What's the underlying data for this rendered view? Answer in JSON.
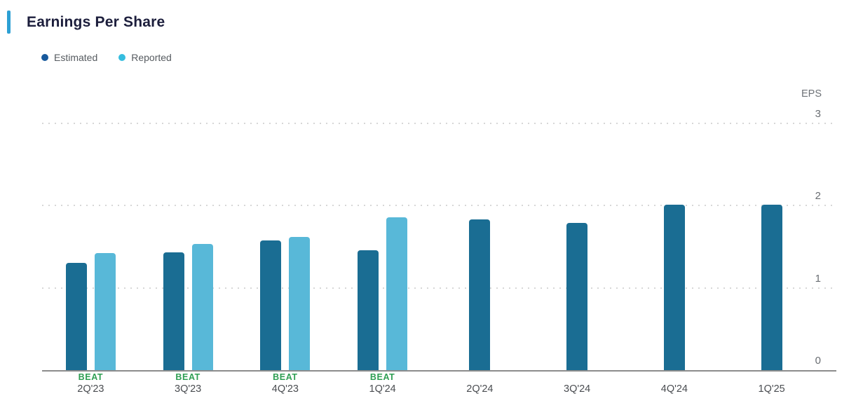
{
  "header": {
    "title": "Earnings Per Share"
  },
  "legend": {
    "estimated_label": "Estimated",
    "reported_label": "Reported"
  },
  "colors": {
    "accent_bar": "#2da0d4",
    "title_text": "#1c1e3c",
    "estimated_bar": "#1a6d93",
    "reported_bar": "#58b8d8",
    "legend_estimated_dot": "#17599c",
    "legend_reported_dot": "#35bddf",
    "beat_green": "#2e9e53",
    "axis_line": "#8c8c8c",
    "gridline": "#d7d7d7",
    "tick_label": "#696d72"
  },
  "chart_data": {
    "type": "bar",
    "title": "Earnings Per Share",
    "y_axis_label": "EPS",
    "ylim": [
      0,
      3
    ],
    "y_ticks": [
      0,
      1,
      2,
      3
    ],
    "grid": "dotted-horizontal",
    "legend_position": "top-left",
    "categories": [
      "2Q'23",
      "3Q'23",
      "4Q'23",
      "1Q'24",
      "2Q'24",
      "3Q'24",
      "4Q'24",
      "1Q'25"
    ],
    "series": [
      {
        "name": "Estimated",
        "color": "#1a6d93",
        "values": [
          1.31,
          1.44,
          1.59,
          1.47,
          1.84,
          1.8,
          2.02,
          2.02
        ]
      },
      {
        "name": "Reported",
        "color": "#58b8d8",
        "values": [
          1.43,
          1.54,
          1.63,
          1.87,
          null,
          null,
          null,
          null
        ]
      }
    ],
    "badges": [
      "BEAT",
      "BEAT",
      "BEAT",
      "BEAT",
      null,
      null,
      null,
      null
    ]
  }
}
